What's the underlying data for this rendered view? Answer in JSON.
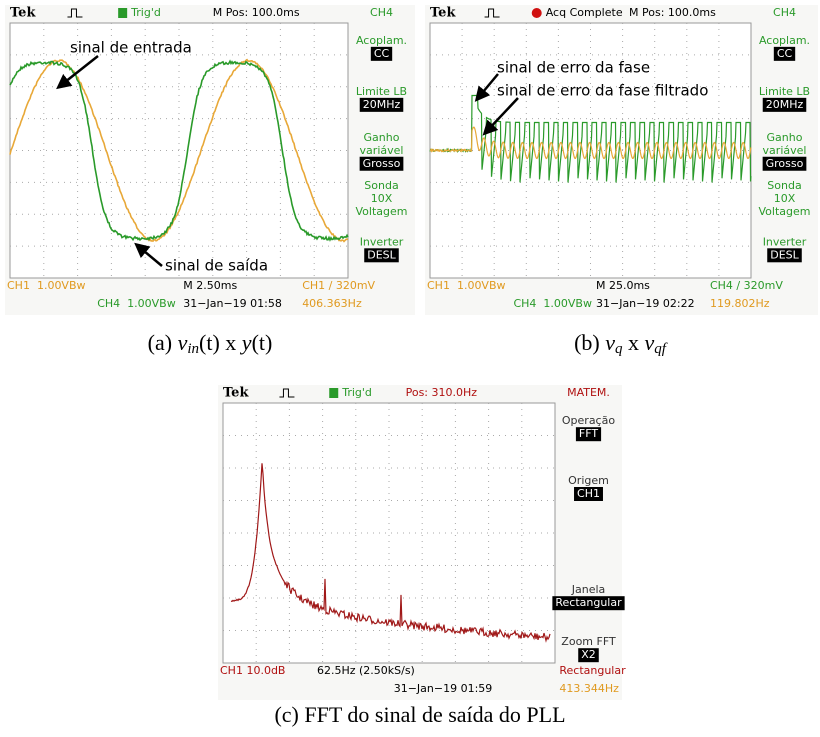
{
  "panels": [
    {
      "header": {
        "brand": "Tek",
        "status": "Trig'd",
        "position": "M Pos: 100.0ms",
        "menu_title": "CH4"
      },
      "menu": [
        {
          "label": [
            "Acoplam."
          ],
          "value": "CC"
        },
        {
          "label": [
            "Limite LB"
          ],
          "value": "20MHz"
        },
        {
          "label": [
            "Ganho",
            "variável"
          ],
          "value": "Grosso"
        },
        {
          "label": [
            "Sonda",
            "10X",
            "Voltagem"
          ]
        },
        {
          "label": [
            "Inverter"
          ],
          "value": "DESL"
        }
      ],
      "footer": [
        [
          {
            "text": "CH1  1.00VBw",
            "color": "#e09a20"
          },
          {
            "text": "M 2.50ms",
            "color": "#000000"
          },
          {
            "text": "CH1 ∕ 320mV",
            "color": "#e09a20"
          }
        ],
        [
          {
            "text": "CH4  1.00VBw",
            "color": "#2a9a2a"
          },
          {
            "text": "31−Jan−19 01:58",
            "color": "#000000"
          },
          {
            "text": "406.363Hz",
            "color": "#e09a20"
          }
        ]
      ],
      "annotations": [
        "sinal de entrada",
        "sinal de saída"
      ],
      "caption": [
        "(a) ",
        "v",
        "in",
        "(t) x ",
        "y",
        "(t)"
      ]
    },
    {
      "header": {
        "brand": "Tek",
        "status": "Acq Complete",
        "position": "M Pos: 100.0ms",
        "menu_title": "CH4"
      },
      "menu": [
        {
          "label": [
            "Acoplam."
          ],
          "value": "CC"
        },
        {
          "label": [
            "Limite LB"
          ],
          "value": "20MHz"
        },
        {
          "label": [
            "Ganho",
            "variável"
          ],
          "value": "Grosso"
        },
        {
          "label": [
            "Sonda",
            "10X",
            "Voltagem"
          ]
        },
        {
          "label": [
            "Inverter"
          ],
          "value": "DESL"
        }
      ],
      "footer": [
        [
          {
            "text": "CH1  1.00VBw",
            "color": "#e09a20"
          },
          {
            "text": "M 25.0ms",
            "color": "#000000"
          },
          {
            "text": "CH4 ∕ 320mV",
            "color": "#2a9a2a"
          }
        ],
        [
          {
            "text": "CH4  1.00VBw",
            "color": "#2a9a2a"
          },
          {
            "text": "31−Jan−19 02:22",
            "color": "#000000"
          },
          {
            "text": "119.802Hz",
            "color": "#e09a20"
          }
        ]
      ],
      "annotations": [
        "sinal de erro da fase",
        "sinal de erro da fase filtrado"
      ],
      "caption": [
        "(b) ",
        "v",
        "q",
        " x ",
        "v",
        "qf"
      ]
    },
    {
      "header": {
        "brand": "Tek",
        "status": "Trig'd",
        "position": "Pos: 310.0Hz",
        "menu_title": "MATEM."
      },
      "menu": [
        {
          "label": [
            "Operação"
          ],
          "value": "FFT"
        },
        {
          "label": [
            "Origem"
          ],
          "value": "CH1"
        },
        {
          "label": [
            "Janela"
          ],
          "value": "Rectangular"
        },
        {
          "label": [
            "Zoom FFT"
          ],
          "value": "X2"
        }
      ],
      "footer": [
        [
          {
            "text": "CH1 10.0dB",
            "color": "#b01010"
          },
          {
            "text": "62.5Hz (2.50kS/s)",
            "color": "#000000"
          },
          {
            "text": "Rectangular",
            "color": "#b01010"
          }
        ],
        [
          {
            "text": "31−Jan−19 01:59",
            "color": "#000000"
          },
          {
            "text": "413.344Hz",
            "color": "#e09a20"
          }
        ]
      ],
      "annotations": [],
      "caption": [
        "(c) FFT do sinal de saída do PLL"
      ]
    }
  ]
}
